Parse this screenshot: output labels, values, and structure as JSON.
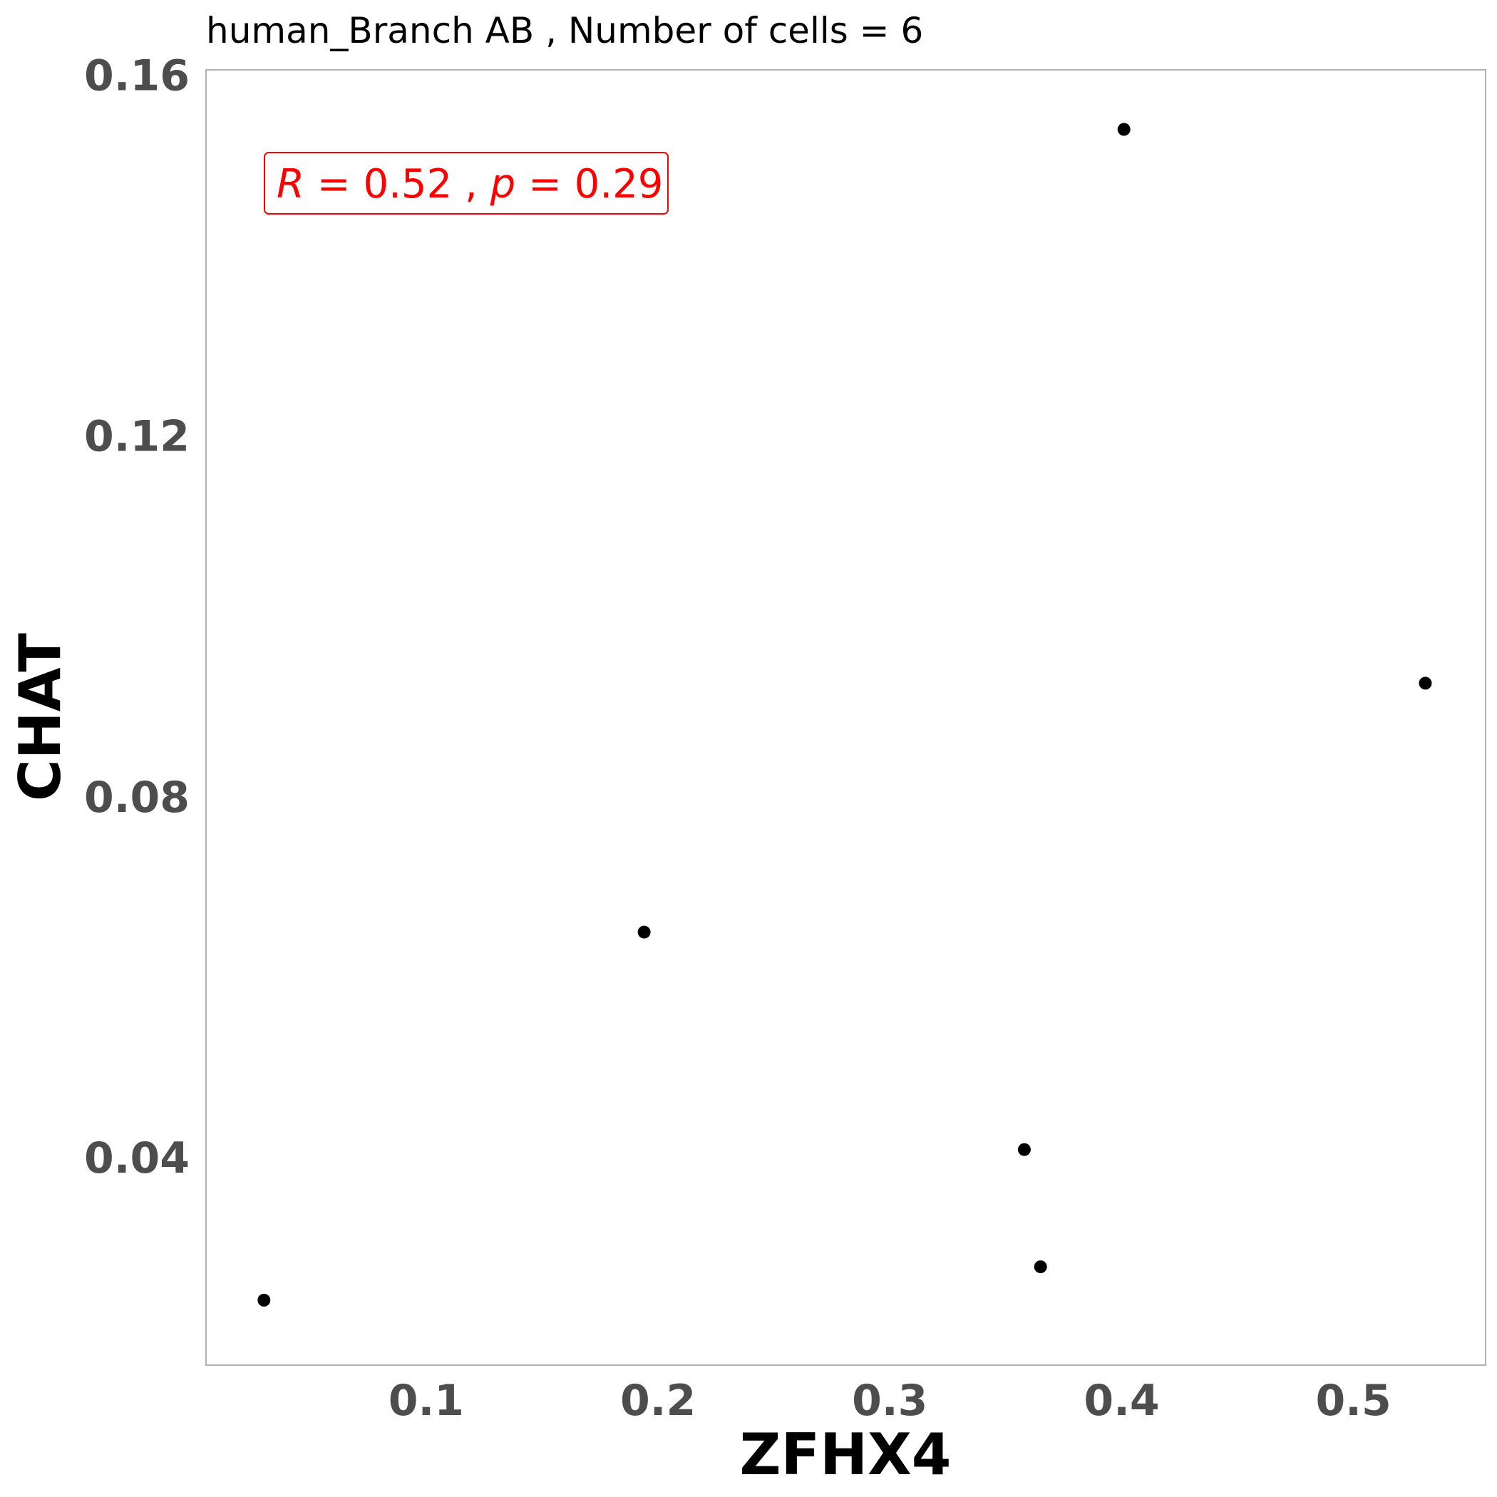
{
  "chart_data": {
    "type": "scatter",
    "title": "human_Branch AB , Number of cells =  6",
    "xlabel": "ZFHX4",
    "ylabel": "CHAT",
    "xlim": [
      0.005,
      0.557
    ],
    "ylim": [
      0.017,
      0.1606
    ],
    "x_ticks": [
      0.1,
      0.2,
      0.3,
      0.4,
      0.5
    ],
    "x_tick_labels": [
      "0.1",
      "0.2",
      "0.3",
      "0.4",
      "0.5"
    ],
    "y_ticks": [
      0.04,
      0.08,
      0.12,
      0.16
    ],
    "y_tick_labels": [
      "0.04",
      "0.08",
      "0.12",
      "0.16"
    ],
    "grid": false,
    "legend": false,
    "point_color": "#000000",
    "annotation": {
      "r_label": "R",
      "r_value": "0.52",
      "p_label": "p",
      "p_value": "0.29",
      "color": "#ff0000"
    },
    "points": [
      {
        "x": 0.03,
        "y": 0.0242
      },
      {
        "x": 0.194,
        "y": 0.065
      },
      {
        "x": 0.358,
        "y": 0.0409
      },
      {
        "x": 0.365,
        "y": 0.0279
      },
      {
        "x": 0.401,
        "y": 0.154
      },
      {
        "x": 0.531,
        "y": 0.0926
      }
    ]
  }
}
